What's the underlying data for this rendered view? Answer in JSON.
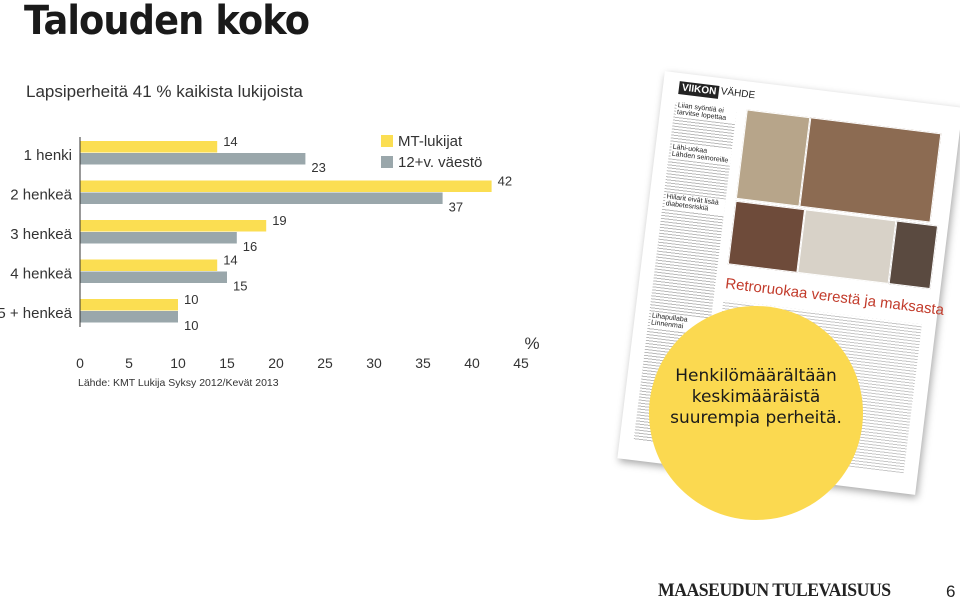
{
  "title": "Talouden koko",
  "subtitle": "Lapsiperheitä 41 % kaikista lukijoista",
  "source": "Lähde: KMT Lukija Syksy 2012/Kevät 2013",
  "callout": "Henkilömäärältään keskimääräistä suurempia perheitä.",
  "logo_text": "MAASEUDUN TULEVAISUUS",
  "page_number": "6",
  "clipping": {
    "section": "VIIKON",
    "section2": "VÄHDE",
    "headline1": "Liian syöntiä ei tarvitse lopettaa",
    "headline2": "Lähi-uokaa Lähden seinoreille",
    "headline3": "Hiilarit eivät lisää diabetesriskiä",
    "banner": "Retroruokaa verestä ja maksasta",
    "headline4": "Lihapullaba Linnenmai"
  },
  "colors": {
    "mt_lukijat": "#fbde52",
    "vaesto": "#9aa7ab",
    "callout": "#fbd950",
    "axis": "#333333"
  },
  "chart_data": {
    "type": "bar",
    "orientation": "horizontal",
    "categories": [
      "1 henki",
      "2 henkeä",
      "3 henkeä",
      "4 henkeä",
      "5 + henkeä"
    ],
    "series": [
      {
        "name": "MT-lukijat",
        "values": [
          14,
          42,
          19,
          14,
          10
        ]
      },
      {
        "name": "12+v. väestö",
        "values": [
          23,
          37,
          16,
          15,
          10
        ]
      }
    ],
    "xlabel": "%",
    "xlim": [
      0,
      45
    ],
    "xticks": [
      0,
      5,
      10,
      15,
      20,
      25,
      30,
      35,
      40,
      45
    ],
    "legend": "top-right",
    "grid": false
  }
}
